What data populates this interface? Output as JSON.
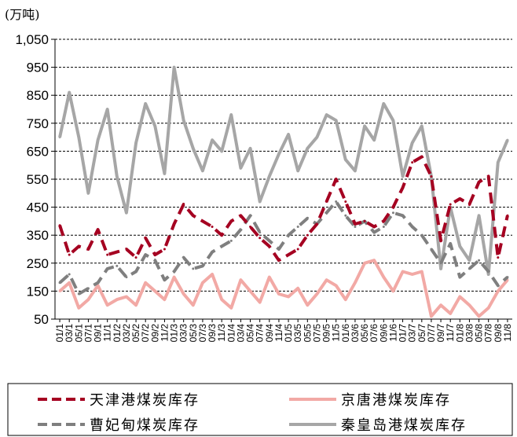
{
  "chart_data": {
    "type": "line",
    "unit_label": "(万吨)",
    "title": "",
    "xlabel": "",
    "ylabel": "",
    "ylim": [
      50,
      1050
    ],
    "y_ticks": [
      50,
      150,
      250,
      350,
      450,
      550,
      650,
      750,
      850,
      950,
      1050
    ],
    "y_tick_labels": [
      "50",
      "150",
      "250",
      "350",
      "450",
      "550",
      "650",
      "750",
      "850",
      "950",
      "1,050"
    ],
    "grid": true,
    "legend_position": "bottom",
    "x_tick_labels": [
      "01/1",
      "03/1",
      "05/1",
      "07/1",
      "09/1",
      "11/1",
      "01/2",
      "03/2",
      "05/2",
      "07/2",
      "09/2",
      "11/2",
      "01/3",
      "03/3",
      "05/3",
      "07/3",
      "09/3",
      "11/3",
      "01/4",
      "03/4",
      "05/4",
      "07/4",
      "09/4",
      "11/4",
      "01/5",
      "03/5",
      "05/5",
      "07/5",
      "09/5",
      "11/5",
      "01/6",
      "03/6",
      "05/6",
      "07/6",
      "09/6",
      "11/6",
      "01/7",
      "03/7",
      "05/7",
      "07/7",
      "09/7",
      "11/7",
      "01/8",
      "03/8",
      "05/8",
      "07/8",
      "09/8",
      "11/8"
    ],
    "x": [
      1,
      2,
      3,
      4,
      5,
      6,
      7,
      8,
      9,
      10,
      11,
      12,
      13,
      14,
      15,
      16,
      17,
      18,
      19,
      20,
      21,
      22,
      23,
      24,
      25,
      26,
      27,
      28,
      29,
      30,
      31,
      32,
      33,
      34,
      35,
      36,
      37,
      38,
      39,
      40,
      41,
      42,
      43,
      44,
      45,
      46,
      47,
      48
    ],
    "series": [
      {
        "name": "天津港煤炭库存",
        "color": "#A50021",
        "dash": "dashed",
        "values": [
          385,
          280,
          310,
          300,
          370,
          280,
          290,
          300,
          270,
          340,
          280,
          300,
          390,
          460,
          420,
          400,
          380,
          350,
          400,
          420,
          380,
          340,
          310,
          260,
          280,
          300,
          350,
          390,
          470,
          550,
          470,
          390,
          400,
          380,
          400,
          450,
          520,
          610,
          630,
          560,
          330,
          460,
          480,
          460,
          540,
          560,
          270,
          420
        ]
      },
      {
        "name": "京唐港煤炭库存",
        "color": "#F2A9A5",
        "dash": "solid",
        "values": [
          150,
          180,
          90,
          120,
          170,
          100,
          120,
          130,
          100,
          180,
          150,
          120,
          200,
          140,
          100,
          180,
          210,
          120,
          90,
          190,
          150,
          110,
          200,
          140,
          130,
          160,
          100,
          140,
          190,
          170,
          120,
          180,
          250,
          260,
          200,
          150,
          220,
          210,
          220,
          60,
          100,
          70,
          130,
          100,
          60,
          90,
          150,
          190
        ]
      },
      {
        "name": "曹妃甸煤炭库存",
        "color": "#7F7F7F",
        "dash": "dashed",
        "values": [
          180,
          210,
          140,
          160,
          180,
          230,
          240,
          200,
          220,
          280,
          260,
          190,
          220,
          270,
          230,
          240,
          290,
          310,
          330,
          370,
          420,
          360,
          330,
          300,
          350,
          380,
          410,
          390,
          430,
          470,
          420,
          380,
          400,
          360,
          380,
          430,
          420,
          380,
          350,
          300,
          250,
          320,
          200,
          230,
          260,
          220,
          170,
          200
        ]
      },
      {
        "name": "秦皇岛港煤炭库存",
        "color": "#A6A6A6",
        "dash": "solid",
        "values": [
          700,
          860,
          700,
          500,
          690,
          800,
          560,
          430,
          680,
          820,
          740,
          570,
          950,
          760,
          660,
          580,
          690,
          650,
          780,
          590,
          660,
          470,
          560,
          640,
          710,
          580,
          660,
          700,
          780,
          760,
          620,
          580,
          740,
          690,
          820,
          760,
          560,
          680,
          740,
          560,
          230,
          450,
          310,
          260,
          420,
          210,
          610,
          690
        ]
      }
    ]
  }
}
